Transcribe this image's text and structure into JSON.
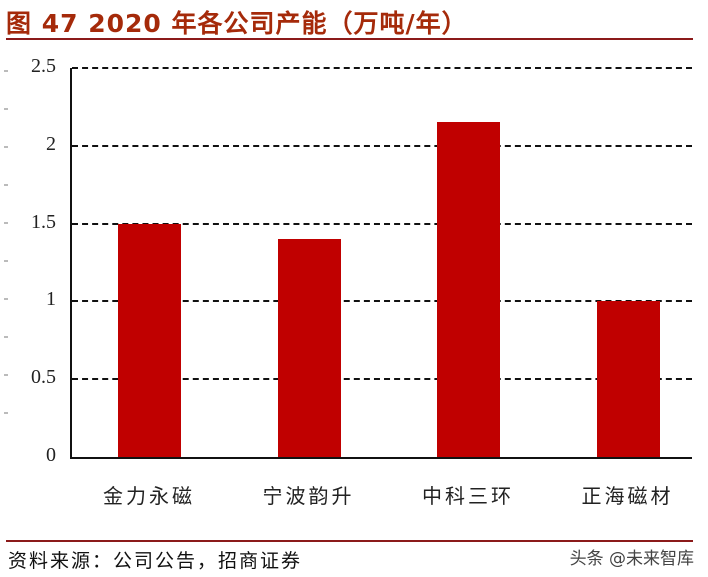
{
  "title": "图 47 2020 年各公司产能（万吨/年）",
  "source": "资料来源：公司公告，招商证券",
  "watermark": "头条 @未来智库",
  "colors": {
    "bar": "#c00000",
    "title": "#a52a0a",
    "rule": "#8b1a1a"
  },
  "chart_data": {
    "type": "bar",
    "title": "2020 年各公司产能（万吨/年）",
    "categories": [
      "金力永磁",
      "宁波韵升",
      "中科三环",
      "正海磁材"
    ],
    "values": [
      1.5,
      1.4,
      2.15,
      1.0
    ],
    "xlabel": "",
    "ylabel": "万吨/年",
    "ylim": [
      0,
      2.5
    ],
    "yticks": [
      "0",
      "0.5",
      "1",
      "1.5",
      "2",
      "2.5"
    ],
    "grid": "horizontal dashed",
    "legend": "none"
  }
}
